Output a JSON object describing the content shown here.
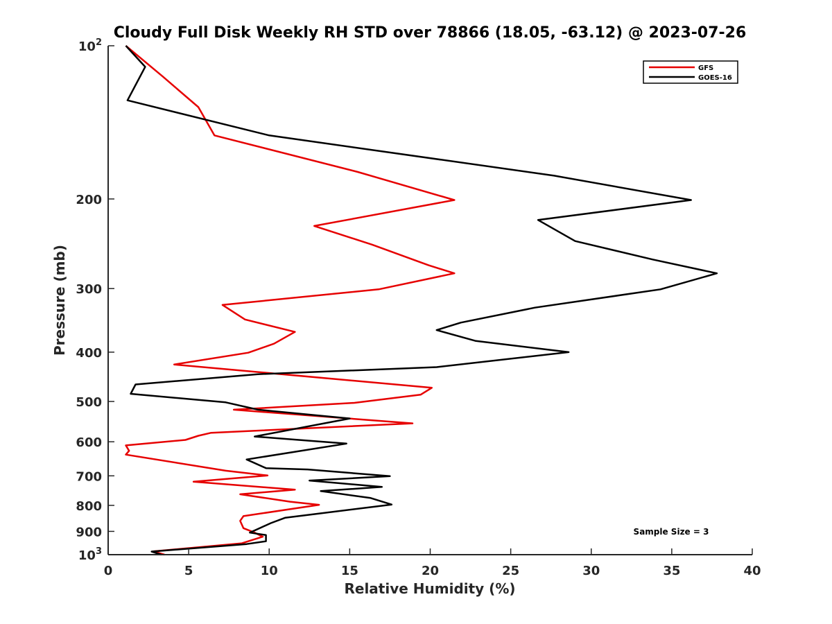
{
  "chart_data": {
    "type": "line",
    "title": "Cloudy Full Disk Weekly RH STD over 78866 (18.05, -63.12) @ 2023-07-26",
    "xlabel": "Relative Humidity (%)",
    "ylabel": "Pressure (mb)",
    "xlim": [
      0,
      40
    ],
    "ylim": [
      100,
      1000
    ],
    "yscale": "log",
    "y_reversed": true,
    "grid": false,
    "legend_position": "top-right",
    "x_ticks": [
      "0",
      "5",
      "10",
      "15",
      "20",
      "25",
      "30",
      "35",
      "40"
    ],
    "x_tick_values": [
      0,
      5,
      10,
      15,
      20,
      25,
      30,
      35,
      40
    ],
    "y_ticks": [
      {
        "value": 100,
        "base": "10",
        "exp": "2"
      },
      {
        "value": 200,
        "label": "200"
      },
      {
        "value": 300,
        "label": "300"
      },
      {
        "value": 400,
        "label": "400"
      },
      {
        "value": 500,
        "label": "500"
      },
      {
        "value": 600,
        "label": "600"
      },
      {
        "value": 700,
        "label": "700"
      },
      {
        "value": 800,
        "label": "800"
      },
      {
        "value": 900,
        "label": "900"
      },
      {
        "value": 1000,
        "base": "10",
        "exp": "3"
      }
    ],
    "annotation": "Sample Size = 3",
    "series": [
      {
        "name": "GFS",
        "color": "#e60000",
        "points": [
          [
            1.1,
            100
          ],
          [
            3.4,
            115
          ],
          [
            5.6,
            132
          ],
          [
            6.6,
            150
          ],
          [
            15.5,
            177
          ],
          [
            21.5,
            201
          ],
          [
            12.8,
            226
          ],
          [
            16.4,
            246
          ],
          [
            19.9,
            270
          ],
          [
            21.5,
            280
          ],
          [
            16.8,
            301
          ],
          [
            7.1,
            323
          ],
          [
            8.5,
            345
          ],
          [
            11.6,
            365
          ],
          [
            10.3,
            385
          ],
          [
            8.7,
            401
          ],
          [
            4.1,
            423
          ],
          [
            20.1,
            470
          ],
          [
            19.4,
            485
          ],
          [
            15.3,
            503
          ],
          [
            7.8,
            519
          ],
          [
            18.9,
            552
          ],
          [
            6.4,
            576
          ],
          [
            5.6,
            584
          ],
          [
            4.8,
            595
          ],
          [
            1.1,
            610
          ],
          [
            1.3,
            625
          ],
          [
            1.1,
            636
          ],
          [
            7.3,
            684
          ],
          [
            9.9,
            699
          ],
          [
            5.3,
            719
          ],
          [
            11.6,
            745
          ],
          [
            8.2,
            761
          ],
          [
            11.3,
            787
          ],
          [
            13.1,
            798
          ],
          [
            8.4,
            840
          ],
          [
            8.2,
            858
          ],
          [
            8.4,
            887
          ],
          [
            9.1,
            905
          ],
          [
            9.6,
            922
          ],
          [
            8.3,
            950
          ],
          [
            2.8,
            985
          ],
          [
            3.5,
            1000
          ]
        ]
      },
      {
        "name": "GOES-16",
        "color": "#000000",
        "points": [
          [
            1.1,
            100
          ],
          [
            2.3,
            110
          ],
          [
            1.2,
            128
          ],
          [
            10.0,
            150
          ],
          [
            27.7,
            180
          ],
          [
            36.2,
            201
          ],
          [
            26.7,
            220
          ],
          [
            29.0,
            242
          ],
          [
            33.8,
            263
          ],
          [
            37.8,
            280
          ],
          [
            34.3,
            301
          ],
          [
            26.5,
            327
          ],
          [
            21.9,
            350
          ],
          [
            20.4,
            362
          ],
          [
            22.8,
            380
          ],
          [
            28.6,
            400
          ],
          [
            20.4,
            428
          ],
          [
            9.3,
            442
          ],
          [
            1.7,
            463
          ],
          [
            1.4,
            483
          ],
          [
            7.3,
            502
          ],
          [
            9.3,
            519
          ],
          [
            15.0,
            540
          ],
          [
            9.1,
            586
          ],
          [
            14.8,
            605
          ],
          [
            8.6,
            650
          ],
          [
            9.8,
            676
          ],
          [
            12.4,
            680
          ],
          [
            17.5,
            701
          ],
          [
            12.5,
            715
          ],
          [
            17.0,
            736
          ],
          [
            13.2,
            750
          ],
          [
            16.3,
            774
          ],
          [
            17.6,
            797
          ],
          [
            11.0,
            846
          ],
          [
            10.1,
            867
          ],
          [
            8.8,
            905
          ],
          [
            9.8,
            915
          ],
          [
            9.8,
            941
          ],
          [
            8.6,
            953
          ],
          [
            2.7,
            986
          ],
          [
            3.3,
            1000
          ]
        ]
      }
    ]
  }
}
